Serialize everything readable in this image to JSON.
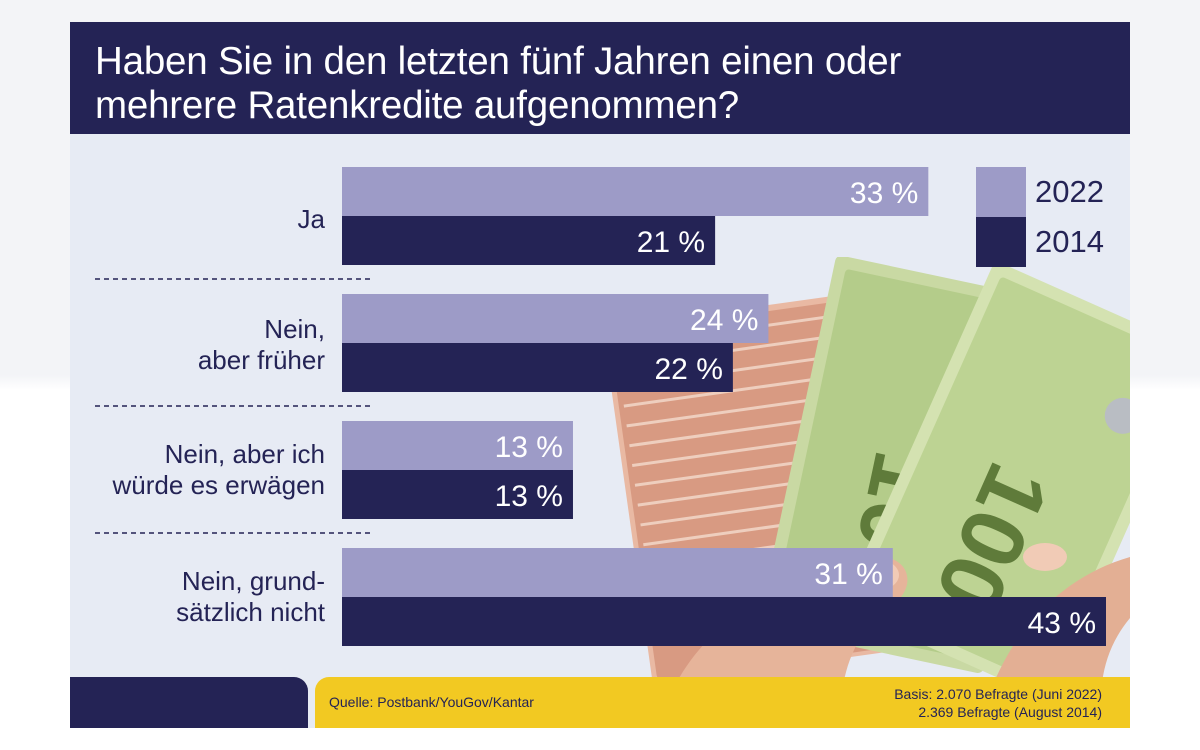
{
  "title": {
    "line1": "Haben Sie in den letzten fünf Jahren einen oder",
    "line2": "mehrere Ratenkredite aufgenommen?"
  },
  "colors": {
    "series_2022": "#9d9bc7",
    "series_2014": "#242355",
    "header": "#242355",
    "footer_accent": "#f2c922",
    "panel": "#e7ebf4"
  },
  "chart_data": {
    "type": "bar",
    "orientation": "horizontal",
    "title": "Haben Sie in den letzten fünf Jahren einen oder mehrere Ratenkredite aufgenommen?",
    "categories": [
      [
        "Ja"
      ],
      [
        "Nein,",
        "aber früher"
      ],
      [
        "Nein, aber ich",
        "würde es erwägen"
      ],
      [
        "Nein, grund-",
        "sätzlich nicht"
      ]
    ],
    "series": [
      {
        "name": "2022",
        "values": [
          33,
          24,
          13,
          31
        ],
        "labels": [
          "33 %",
          "24 %",
          "13 %",
          "31 %"
        ]
      },
      {
        "name": "2014",
        "values": [
          21,
          22,
          13,
          43
        ],
        "labels": [
          "21 %",
          "22 %",
          "13 %",
          "43 %"
        ]
      }
    ],
    "unit": "%",
    "xlim": [
      0,
      43
    ],
    "legend_position": "top-right",
    "grid": false
  },
  "legend": {
    "item1": "2022",
    "item2": "2014"
  },
  "footer": {
    "source": "Quelle: Postbank/YouGov/Kantar",
    "basis_line1": "Basis: 2.070 Befragte (Juni 2022)",
    "basis_line2": "2.369 Befragte (August 2014)"
  }
}
